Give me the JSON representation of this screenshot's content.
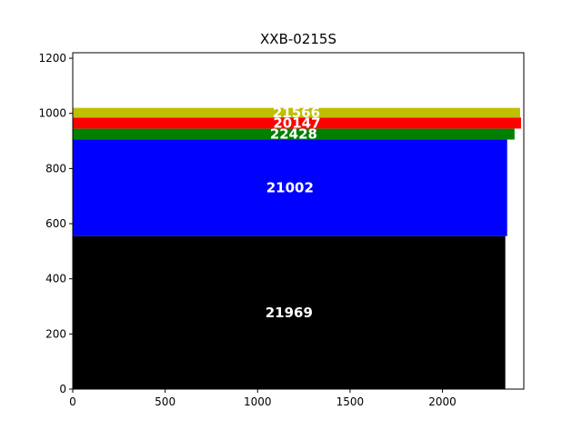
{
  "chart_data": {
    "type": "bar",
    "orientation": "horizontal-stacked",
    "title": "XXB-0215S",
    "xlabel": "",
    "ylabel": "",
    "xlim": [
      0,
      2440
    ],
    "ylim": [
      0,
      1220
    ],
    "xticks": [
      0,
      500,
      1000,
      1500,
      2000
    ],
    "yticks": [
      0,
      200,
      400,
      600,
      800,
      1000,
      1200
    ],
    "grid": false,
    "bars": [
      {
        "label": "21969",
        "bottom": 0,
        "top": 555,
        "length": 2340,
        "color": "#000000"
      },
      {
        "label": "21002",
        "bottom": 555,
        "top": 905,
        "length": 2350,
        "color": "#0000ff"
      },
      {
        "label": "22428",
        "bottom": 905,
        "top": 945,
        "length": 2390,
        "color": "#008000"
      },
      {
        "label": "20147",
        "bottom": 945,
        "top": 985,
        "length": 2425,
        "color": "#ff0000"
      },
      {
        "label": "21566",
        "bottom": 985,
        "top": 1020,
        "length": 2420,
        "color": "#bfbf00"
      }
    ]
  }
}
